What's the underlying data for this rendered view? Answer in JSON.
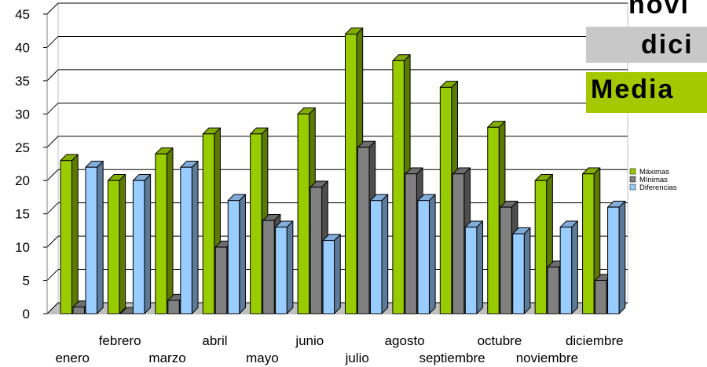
{
  "chart_data": {
    "type": "bar",
    "style": "3d-clustered-column",
    "categories": [
      "enero",
      "febrero",
      "marzo",
      "abril",
      "mayo",
      "junio",
      "julio",
      "agosto",
      "septiembre",
      "octubre",
      "noviembre",
      "diciembre"
    ],
    "series": [
      {
        "name": "Máximas",
        "color": "#99cc00",
        "values": [
          23,
          20,
          24,
          27,
          27,
          30,
          42,
          38,
          34,
          28,
          20,
          21
        ]
      },
      {
        "name": "Mínimas",
        "color": "#808080",
        "values": [
          1,
          0,
          2,
          10,
          14,
          19,
          25,
          21,
          21,
          16,
          7,
          5
        ]
      },
      {
        "name": "Diferencias",
        "color": "#99ccff",
        "values": [
          22,
          20,
          22,
          17,
          13,
          11,
          17,
          17,
          13,
          12,
          13,
          16
        ]
      }
    ],
    "ylim": [
      0,
      45
    ],
    "yticks": [
      0,
      5,
      10,
      15,
      20,
      25,
      30,
      35,
      40,
      45
    ],
    "grid": true,
    "legend": "right"
  },
  "overlay": {
    "noviembre": "novi",
    "diciembre": "dici",
    "media": "Media"
  }
}
